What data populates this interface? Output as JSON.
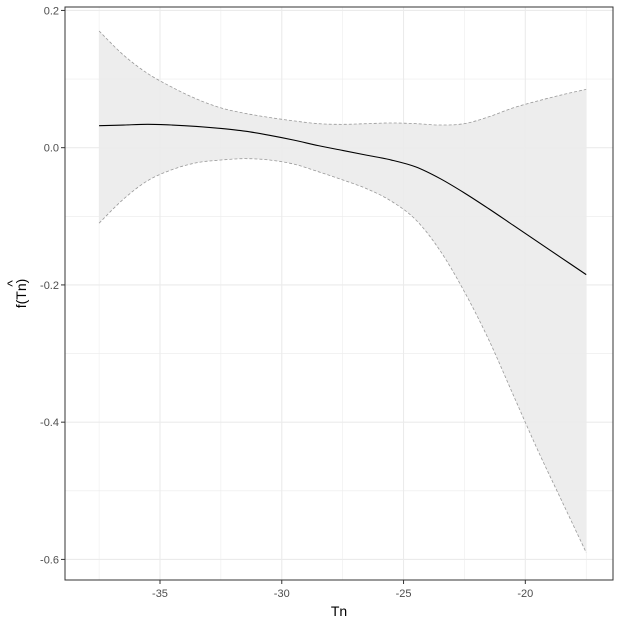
{
  "chart_data": {
    "type": "line",
    "title": "",
    "xlabel": "Tn",
    "ylabel": "f(Tn)",
    "ylabel_hat": "^",
    "xlim": [
      -38.9,
      -16.4
    ],
    "ylim": [
      -0.63,
      0.205
    ],
    "x_ticks": [
      -35,
      -30,
      -25,
      -20
    ],
    "x_tick_labels": [
      "-35",
      "-30",
      "-25",
      "-20"
    ],
    "y_ticks": [
      0.2,
      0.0,
      -0.2,
      -0.4,
      -0.6
    ],
    "y_tick_labels": [
      "0.2",
      "0.0",
      "-0.2",
      "-0.4",
      "-0.6"
    ],
    "grid": true,
    "legend": "none",
    "series": [
      {
        "x": [
          -37.5,
          -36.5,
          -35.5,
          -34.5,
          -33.5,
          -32.5,
          -31.5,
          -30.5,
          -29.5,
          -28.5,
          -27.5,
          -26.5,
          -25.5,
          -24.5,
          -23.5,
          -22.5,
          -21.5,
          -20.5,
          -19.5,
          -18.5,
          -17.5
        ],
        "y": [
          0.032,
          0.033,
          0.034,
          0.033,
          0.031,
          0.028,
          0.024,
          0.018,
          0.011,
          0.003,
          -0.004,
          -0.011,
          -0.018,
          -0.028,
          -0.045,
          -0.066,
          -0.089,
          -0.113,
          -0.137,
          -0.161,
          -0.185
        ],
        "lower": [
          -0.11,
          -0.075,
          -0.048,
          -0.032,
          -0.022,
          -0.018,
          -0.016,
          -0.018,
          -0.024,
          -0.035,
          -0.047,
          -0.06,
          -0.078,
          -0.105,
          -0.15,
          -0.21,
          -0.28,
          -0.36,
          -0.44,
          -0.515,
          -0.59
        ],
        "upper": [
          0.17,
          0.135,
          0.108,
          0.088,
          0.071,
          0.058,
          0.05,
          0.044,
          0.039,
          0.035,
          0.034,
          0.035,
          0.036,
          0.035,
          0.033,
          0.035,
          0.045,
          0.058,
          0.068,
          0.077,
          0.085
        ]
      }
    ],
    "colors": {
      "line": "#000000",
      "band_fill": "#ebebeb",
      "band_border": "#999999",
      "grid": "#ebebeb",
      "panel_border": "#333333",
      "tick_text": "#4d4d4d"
    }
  }
}
